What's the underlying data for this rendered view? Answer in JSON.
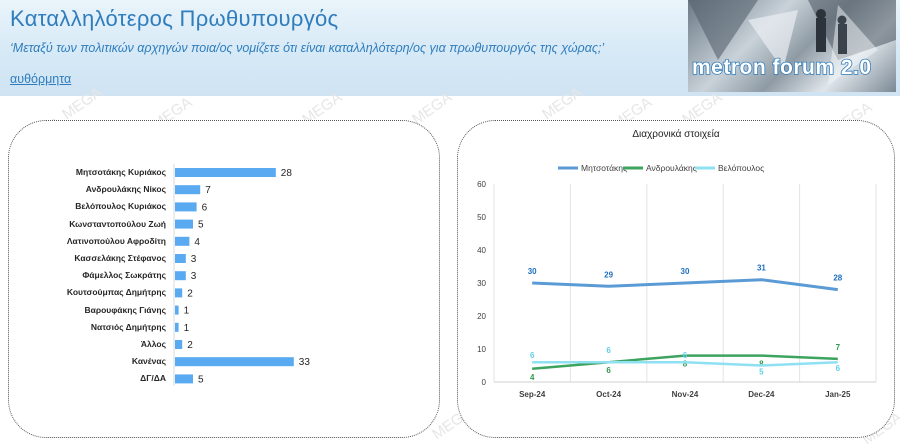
{
  "header": {
    "title": "Καταλληλότερος Πρωθυπουργός",
    "subtitle": "‘Μεταξύ των πολιτικών αρχηγών ποια/ος νομίζετε ότι είναι καταλληλότερη/ος για πρωθυπουργός της χώρας;’",
    "subtitle_link": "αυθόρμητα",
    "logo_text": "metron forum 2.0"
  },
  "watermark": "MEGA",
  "colors": {
    "header_text": "#2f7dbd",
    "bar": "#5aaaf2",
    "series_mitsotakis": "#5b9bd5",
    "series_androulakis": "#3ca45f",
    "series_velopoulos": "#8ee0f2"
  },
  "chart_data": [
    {
      "type": "bar",
      "orientation": "horizontal",
      "categories": [
        "Μητσοτάκης Κυριάκος",
        "Ανδρουλάκης Νίκος",
        "Βελόπουλος Κυριάκος",
        "Κωνσταντοπούλου Ζωή",
        "Λατινοπούλου Αφροδίτη",
        "Κασσελάκης Στέφανος",
        "Φάμελλος Σωκράτης",
        "Κουτσούμπας Δημήτρης",
        "Βαρουφάκης Γιάνης",
        "Νατσιός Δημήτρης",
        "Άλλος",
        "Κανένας",
        "ΔΓ/ΔΑ"
      ],
      "values": [
        28,
        7,
        6,
        5,
        4,
        3,
        3,
        2,
        1,
        1,
        2,
        33,
        5
      ],
      "data_labels": true
    },
    {
      "type": "line",
      "title": "Διαχρονικά στοιχεία",
      "categories": [
        "Sep-24",
        "Oct-24",
        "Nov-24",
        "Dec-24",
        "Jan-25"
      ],
      "ylim": [
        0,
        60
      ],
      "yticks": [
        0,
        10,
        20,
        30,
        40,
        50,
        60
      ],
      "legend_position": "top",
      "series": [
        {
          "name": "Μητσοτάκης",
          "values": [
            30,
            29,
            30,
            31,
            28
          ]
        },
        {
          "name": "Ανδρουλάκης",
          "values": [
            4,
            6,
            8,
            8,
            7
          ]
        },
        {
          "name": "Βελόπουλος",
          "values": [
            6,
            6,
            6,
            5,
            6
          ]
        }
      ]
    }
  ]
}
